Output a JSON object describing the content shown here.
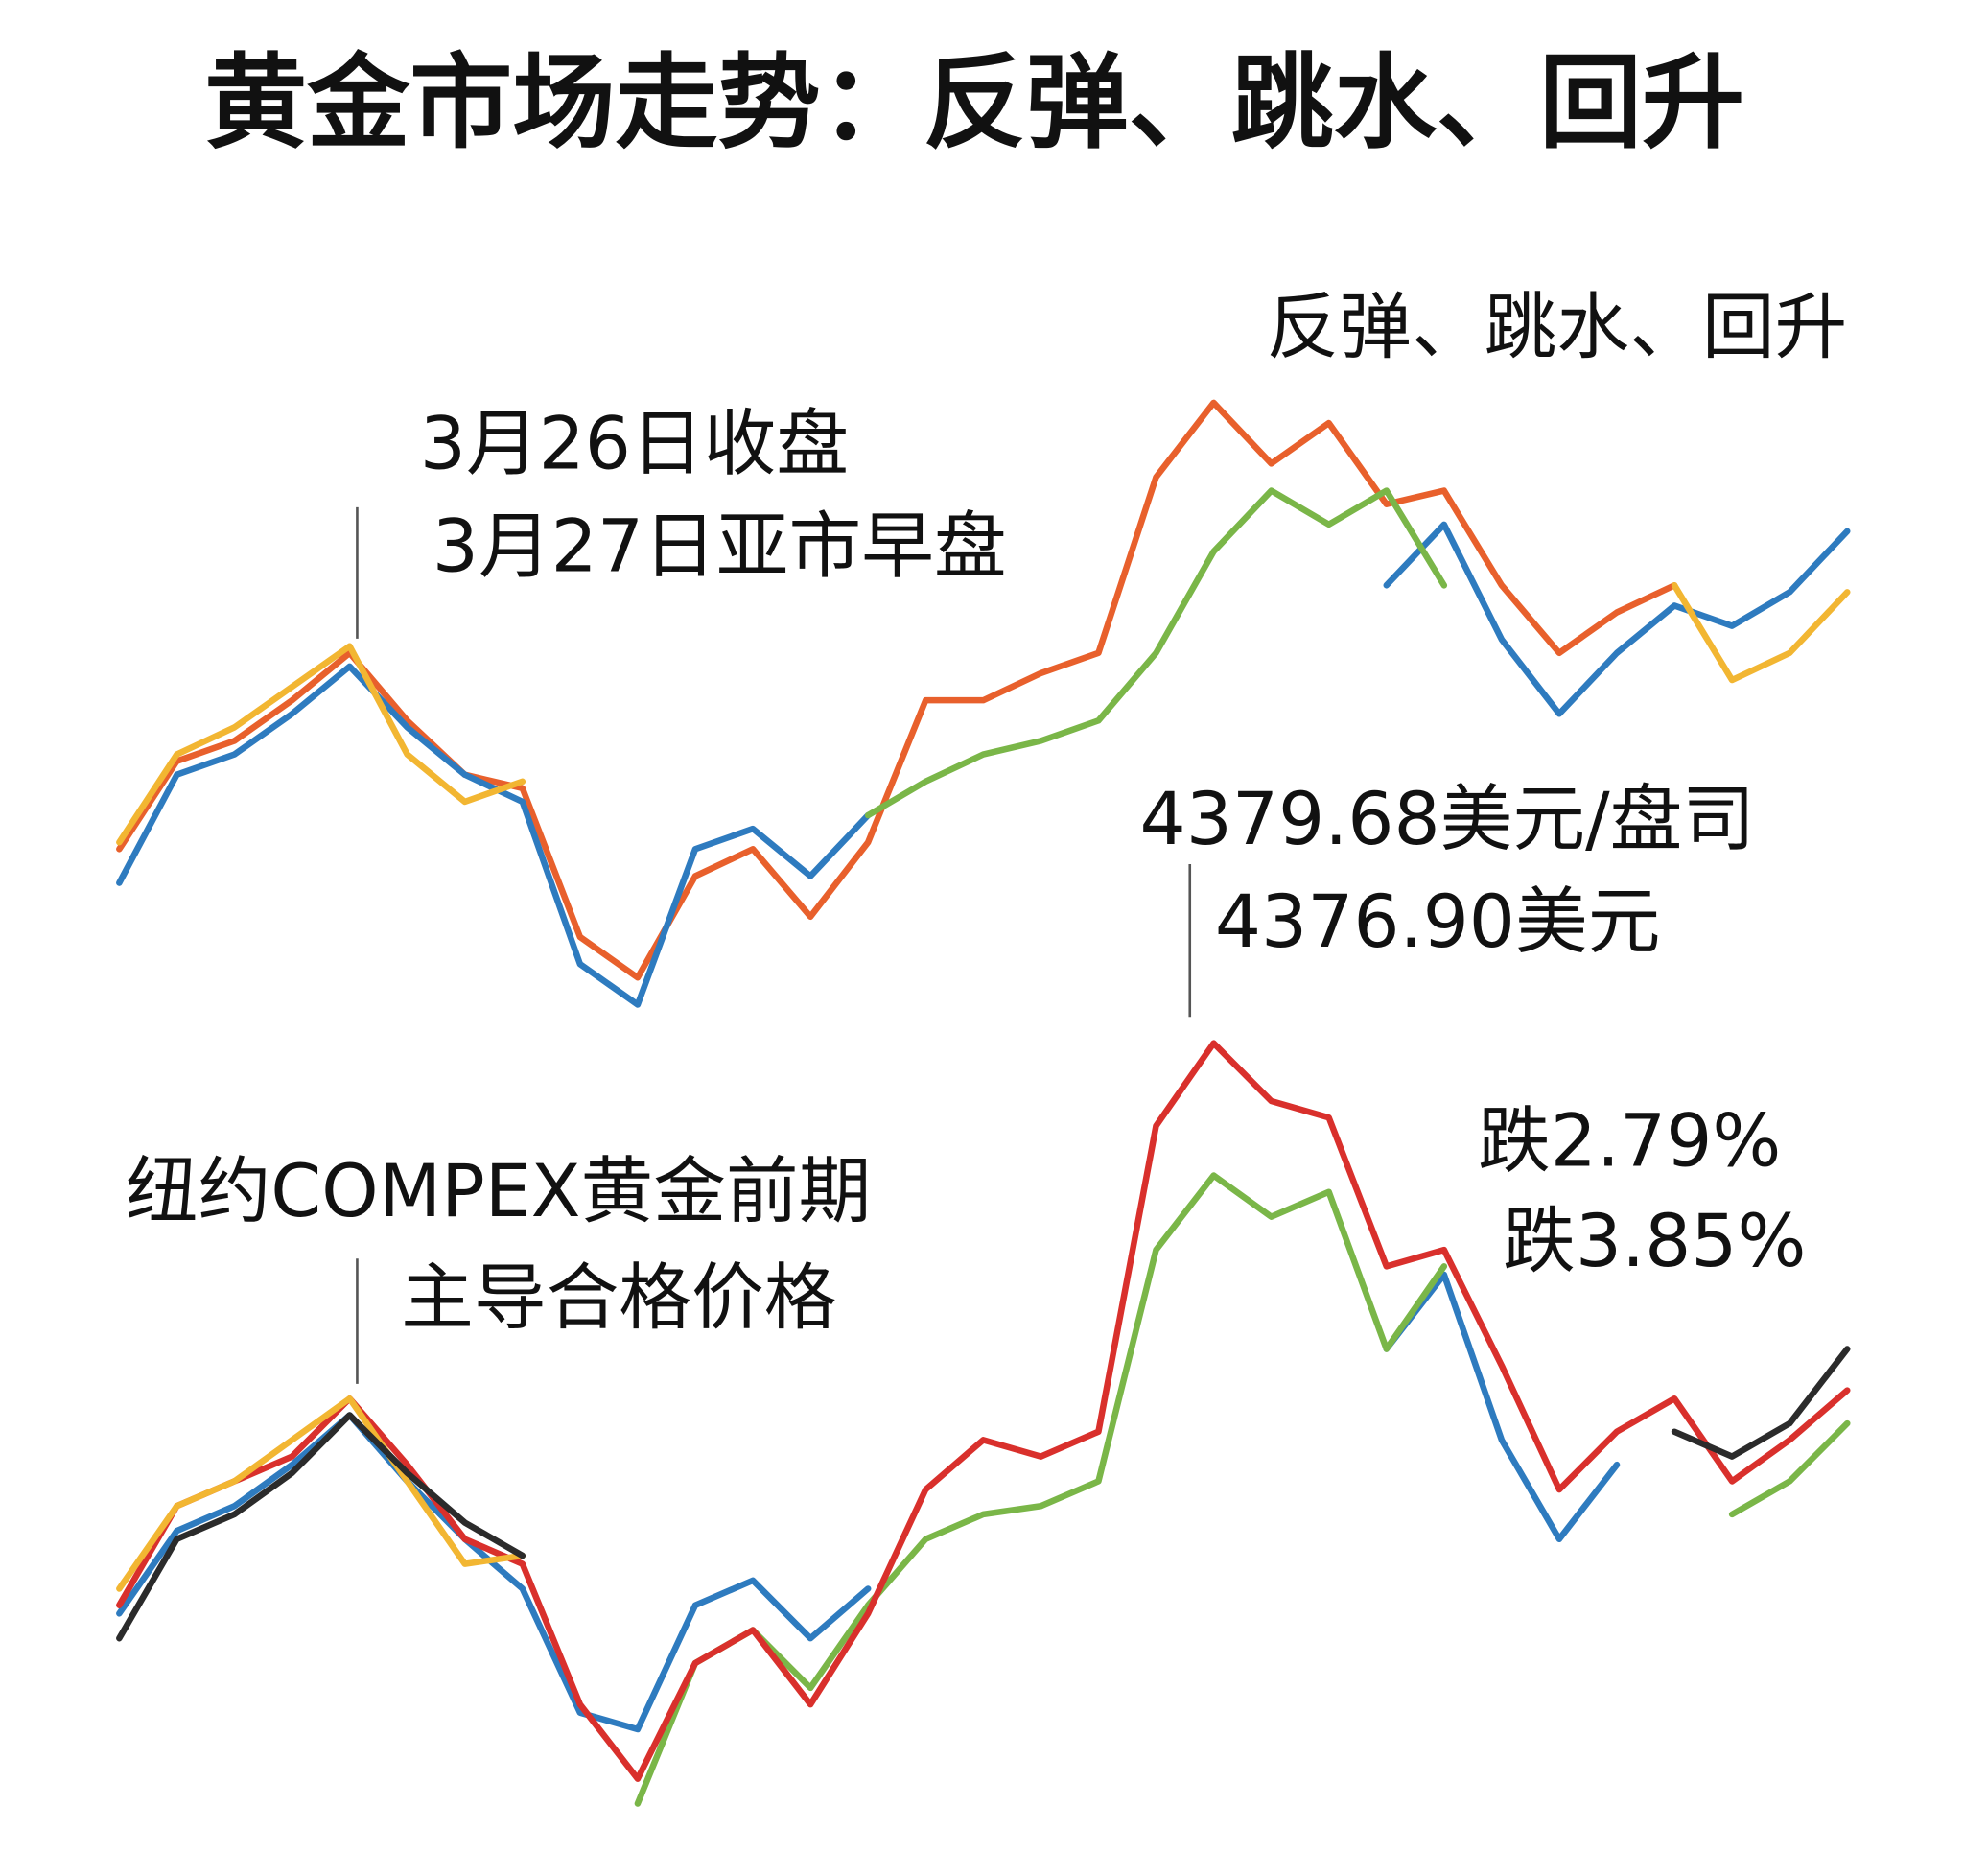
{
  "title": "黄金市场走势：反弹、跳水、回升",
  "chart_data": [
    {
      "type": "line",
      "annotations": [
        "3月26日收盘",
        "3月27日亚市早盘",
        "反弹、跳水、回升"
      ],
      "x": [
        0,
        1,
        2,
        3,
        4,
        5,
        6,
        7,
        8,
        9,
        10,
        11,
        12,
        13,
        14,
        15,
        16,
        17,
        18,
        19,
        20,
        21,
        22,
        23,
        24,
        25,
        26,
        27,
        28,
        29,
        30
      ],
      "xlim": [
        0,
        30
      ],
      "ylim": [
        0,
        100
      ],
      "series": [
        {
          "color": "#e8602c",
          "values": [
            30,
            43,
            46,
            52,
            59,
            49,
            41,
            39,
            17,
            11,
            26,
            30,
            20,
            31,
            52,
            52,
            56,
            59,
            85,
            96,
            87,
            93,
            81,
            83,
            69,
            59,
            65,
            69,
            null,
            null,
            null
          ]
        },
        {
          "color": "#2e7bbf",
          "values": [
            25,
            41,
            44,
            50,
            57,
            48,
            41,
            37,
            13,
            7,
            30,
            33,
            26,
            35,
            null,
            null,
            null,
            null,
            null,
            null,
            null,
            null,
            69,
            78,
            61,
            50,
            59,
            66,
            63,
            68,
            77
          ]
        },
        {
          "color": "#7ab648",
          "values": [
            null,
            null,
            null,
            null,
            null,
            null,
            null,
            null,
            null,
            null,
            null,
            null,
            null,
            35,
            40,
            44,
            46,
            49,
            59,
            74,
            83,
            78,
            83,
            69,
            null,
            null,
            null,
            null,
            null,
            null,
            null
          ]
        },
        {
          "color": "#f2b632",
          "values": [
            31,
            44,
            48,
            54,
            60,
            44,
            37,
            40,
            null,
            null,
            null,
            null,
            null,
            null,
            null,
            null,
            null,
            null,
            null,
            null,
            null,
            null,
            null,
            null,
            null,
            null,
            null,
            69,
            55,
            59,
            68
          ]
        }
      ]
    },
    {
      "type": "line",
      "annotations": [
        "4379.68美元/盘司",
        "4376.90美元",
        "纽约COMPEX黄金前期",
        "主导合格价格",
        "跌2.79%",
        "跌3.85%"
      ],
      "x": [
        0,
        1,
        2,
        3,
        4,
        5,
        6,
        7,
        8,
        9,
        10,
        11,
        12,
        13,
        14,
        15,
        16,
        17,
        18,
        19,
        20,
        21,
        22,
        23,
        24,
        25,
        26,
        27,
        28,
        29,
        30
      ],
      "xlim": [
        0,
        30
      ],
      "ylim": [
        0,
        100
      ],
      "series": [
        {
          "color": "#2e7bbf",
          "values": [
            26,
            36,
            39,
            44,
            50,
            42,
            35,
            29,
            14,
            12,
            27,
            30,
            23,
            29,
            null,
            null,
            null,
            null,
            null,
            null,
            null,
            null,
            58,
            67,
            47,
            35,
            44,
            null,
            null,
            null,
            null
          ]
        },
        {
          "color": "#7ab648",
          "values": [
            null,
            null,
            null,
            null,
            null,
            null,
            null,
            null,
            null,
            3,
            20,
            24,
            17,
            27,
            35,
            38,
            39,
            42,
            70,
            79,
            74,
            77,
            58,
            68,
            null,
            null,
            null,
            null,
            38,
            42,
            49
          ]
        },
        {
          "color": "#d9302c",
          "values": [
            27,
            39,
            42,
            45,
            52,
            44,
            35,
            32,
            15,
            6,
            20,
            24,
            15,
            26,
            41,
            47,
            45,
            48,
            85,
            95,
            88,
            86,
            68,
            70,
            56,
            41,
            48,
            52,
            42,
            47,
            53
          ]
        },
        {
          "color": "#f2b632",
          "values": [
            29,
            39,
            42,
            47,
            52,
            42,
            32,
            33,
            null,
            null,
            null,
            null,
            null,
            null,
            null,
            null,
            null,
            null,
            null,
            null,
            null,
            null,
            null,
            null,
            null,
            null,
            null,
            null,
            null,
            null,
            null
          ]
        },
        {
          "color": "#2b2b2b",
          "values": [
            23,
            35,
            38,
            43,
            50,
            43,
            37,
            33,
            null,
            null,
            null,
            null,
            null,
            null,
            null,
            null,
            null,
            null,
            null,
            null,
            null,
            null,
            null,
            null,
            null,
            null,
            null,
            48,
            45,
            49,
            58
          ]
        }
      ]
    }
  ]
}
